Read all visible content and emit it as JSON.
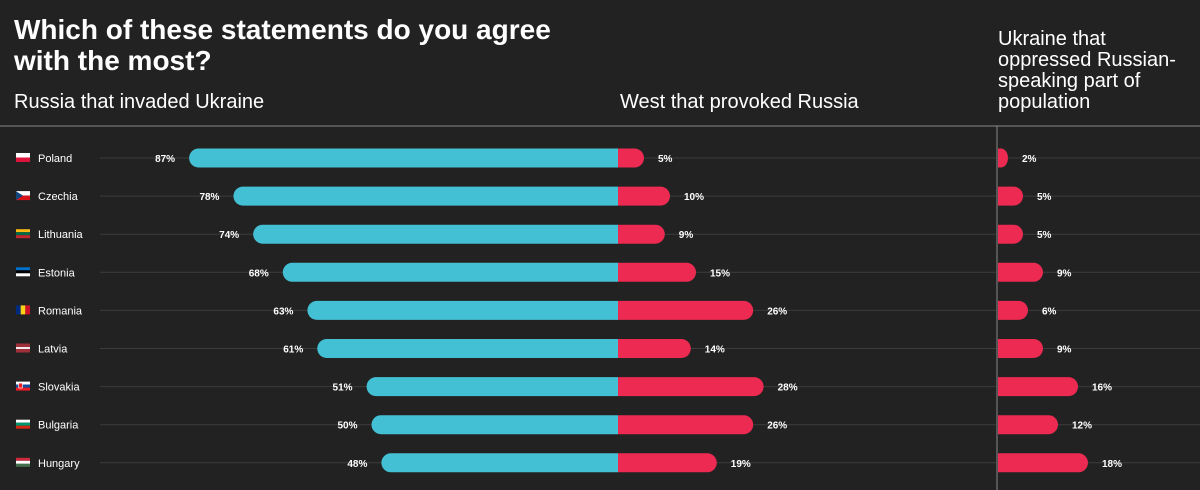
{
  "title": "Which of these statements do you agree with the most?",
  "columns": {
    "russia": "Russia that invaded Ukraine",
    "west": "West that provoked Russia",
    "ukraine": "Ukraine that oppressed Russian-speaking part of population"
  },
  "colors": {
    "background": "#222222",
    "russia_bar": "#44c0d4",
    "west_bar": "#ec2a52",
    "ukraine_bar": "#ec2a52",
    "gridline": "#3c3c3c",
    "divider": "#8a8a8a"
  },
  "chart_data": {
    "type": "bar",
    "categories": [
      "Poland",
      "Czechia",
      "Lithuania",
      "Estonia",
      "Romania",
      "Latvia",
      "Slovakia",
      "Bulgaria",
      "Hungary"
    ],
    "flags": [
      "poland-flag-icon",
      "czechia-flag-icon",
      "lithuania-flag-icon",
      "estonia-flag-icon",
      "romania-flag-icon",
      "latvia-flag-icon",
      "slovakia-flag-icon",
      "bulgaria-flag-icon",
      "hungary-flag-icon"
    ],
    "series": [
      {
        "name": "Russia that invaded Ukraine",
        "values": [
          87,
          78,
          74,
          68,
          63,
          61,
          51,
          50,
          48
        ],
        "labels": [
          "87%",
          "78%",
          "74%",
          "68%",
          "63%",
          "61%",
          "51%",
          "50%",
          "48%"
        ]
      },
      {
        "name": "West that provoked Russia",
        "values": [
          5,
          10,
          9,
          15,
          26,
          14,
          28,
          26,
          19
        ],
        "labels": [
          "5%",
          "10%",
          "9%",
          "15%",
          "26%",
          "14%",
          "28%",
          "26%",
          "19%"
        ]
      },
      {
        "name": "Ukraine that oppressed Russian-speaking part of population",
        "values": [
          2,
          5,
          5,
          9,
          6,
          9,
          16,
          12,
          18
        ],
        "labels": [
          "2%",
          "5%",
          "5%",
          "9%",
          "6%",
          "9%",
          "16%",
          "12%",
          "18%"
        ]
      }
    ],
    "unit": "%",
    "grid": true,
    "legend": "none"
  }
}
